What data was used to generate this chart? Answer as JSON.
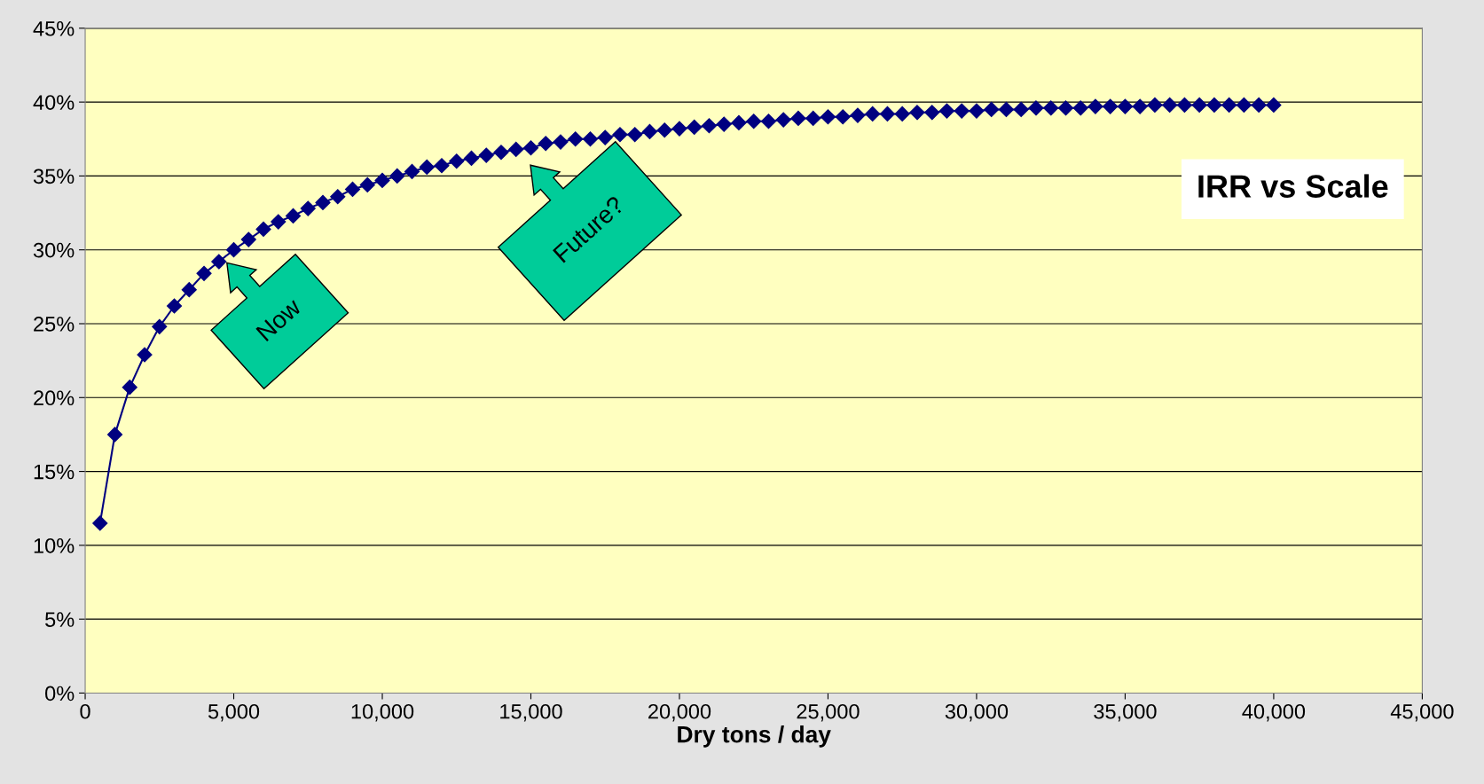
{
  "chart_data": {
    "type": "line",
    "title": "IRR vs Scale",
    "xlabel": "Dry tons / day",
    "x": [
      500,
      1000,
      1500,
      2000,
      2500,
      3000,
      3500,
      4000,
      4500,
      5000,
      5500,
      6000,
      6500,
      7000,
      7500,
      8000,
      8500,
      9000,
      9500,
      10000,
      10500,
      11000,
      11500,
      12000,
      12500,
      13000,
      13500,
      14000,
      14500,
      15000,
      15500,
      16000,
      16500,
      17000,
      17500,
      18000,
      18500,
      19000,
      19500,
      20000,
      20500,
      21000,
      21500,
      22000,
      22500,
      23000,
      23500,
      24000,
      24500,
      25000,
      25500,
      26000,
      26500,
      27000,
      27500,
      28000,
      28500,
      29000,
      29500,
      30000,
      30500,
      31000,
      31500,
      32000,
      32500,
      33000,
      33500,
      34000,
      34500,
      35000,
      35500,
      36000,
      36500,
      37000,
      37500,
      38000,
      38500,
      39000,
      39500,
      40000
    ],
    "series": [
      {
        "color": "#000080",
        "values": [
          11.5,
          17.5,
          20.7,
          22.9,
          24.8,
          26.2,
          27.3,
          28.4,
          29.2,
          30.0,
          30.7,
          31.4,
          31.9,
          32.3,
          32.8,
          33.2,
          33.6,
          34.1,
          34.4,
          34.7,
          35.0,
          35.3,
          35.6,
          35.7,
          36.0,
          36.2,
          36.4,
          36.6,
          36.8,
          36.9,
          37.2,
          37.3,
          37.5,
          37.5,
          37.6,
          37.8,
          37.8,
          38.0,
          38.1,
          38.2,
          38.3,
          38.4,
          38.5,
          38.6,
          38.7,
          38.7,
          38.8,
          38.9,
          38.9,
          39.0,
          39.0,
          39.1,
          39.2,
          39.2,
          39.2,
          39.3,
          39.3,
          39.4,
          39.4,
          39.4,
          39.5,
          39.5,
          39.5,
          39.6,
          39.6,
          39.6,
          39.6,
          39.7,
          39.7,
          39.7,
          39.7,
          39.8,
          39.8,
          39.8,
          39.8,
          39.8,
          39.8,
          39.8,
          39.8,
          39.8
        ]
      }
    ],
    "marker": "diamond",
    "line_style": "solid",
    "grid": "y",
    "legend": false,
    "xlim": [
      0,
      45000
    ],
    "xticks": [
      0,
      {
        "value": 5000,
        "label": "5,000"
      },
      {
        "value": 10000,
        "label": "10,000"
      },
      {
        "value": 15000,
        "label": "15,000"
      },
      {
        "value": 20000,
        "label": "20,000"
      },
      {
        "value": 25000,
        "label": "25,000"
      },
      {
        "value": 30000,
        "label": "30,000"
      },
      {
        "value": 35000,
        "label": "35,000"
      },
      {
        "value": 40000,
        "label": "40,000"
      },
      {
        "value": 45000,
        "label": "45,000"
      }
    ],
    "ylim": [
      0,
      45
    ],
    "yticks": [
      {
        "value": 0,
        "label": "0%"
      },
      {
        "value": 5,
        "label": "5%"
      },
      {
        "value": 10,
        "label": "10%"
      },
      {
        "value": 15,
        "label": "15%"
      },
      {
        "value": 20,
        "label": "20%"
      },
      {
        "value": 25,
        "label": "25%"
      },
      {
        "value": 30,
        "label": "30%"
      },
      {
        "value": 35,
        "label": "35%"
      },
      {
        "value": 40,
        "label": "40%"
      },
      {
        "value": 45,
        "label": "45%"
      }
    ],
    "annotations": [
      "Now",
      "Future?"
    ]
  }
}
